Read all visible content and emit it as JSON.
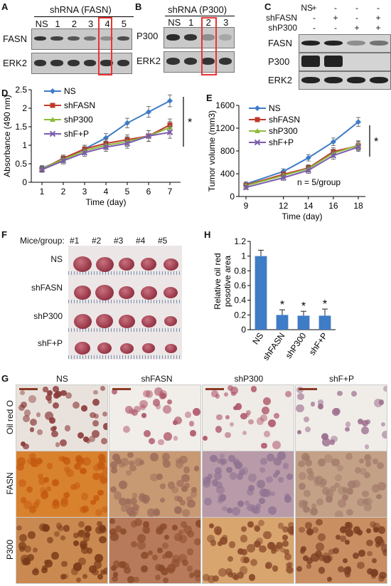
{
  "panels": {
    "A": {
      "label": "A",
      "title": "shRNA (FASN)",
      "lanes": [
        "NS",
        "1",
        "2",
        "3",
        "4",
        "5"
      ],
      "rows": [
        "FASN",
        "ERK2"
      ],
      "fasn_intensity": [
        0.9,
        0.8,
        0.7,
        0.55,
        0.35,
        0.75
      ]
    },
    "B": {
      "label": "B",
      "title": "shRNA (P300)",
      "lanes": [
        "NS",
        "1",
        "2",
        "3"
      ],
      "rows": [
        "P300",
        "ERK2"
      ],
      "p300_intensity": [
        0.95,
        0.9,
        0.35,
        0.2
      ]
    },
    "C": {
      "label": "C",
      "row_labels": [
        "NS",
        "shFASN",
        "shP300"
      ],
      "signs": [
        [
          "+",
          "-",
          "-",
          "-"
        ],
        [
          "-",
          "+",
          "-",
          "+"
        ],
        [
          "-",
          "-",
          "+",
          "+"
        ]
      ],
      "rows": [
        "FASN",
        "P300",
        "ERK2"
      ]
    },
    "D": {
      "label": "D"
    },
    "E": {
      "label": "E",
      "note": "n = 5/group"
    },
    "F": {
      "label": "F",
      "header": "Mice/group:",
      "cols": [
        "#1",
        "#2",
        "#3",
        "#4",
        "#5"
      ],
      "rows": [
        "NS",
        "shFASN",
        "shP300",
        "shF+P"
      ]
    },
    "G": {
      "label": "G",
      "cols": [
        "NS",
        "shFASN",
        "shP300",
        "shF+P"
      ],
      "rows": [
        "Oil red O",
        "FASN",
        "P300"
      ]
    },
    "H": {
      "label": "H"
    }
  },
  "chart_data": [
    {
      "id": "D",
      "type": "line",
      "xlabel": "Time (day)",
      "ylabel": "Absorbance (490 nm)",
      "x": [
        1,
        2,
        3,
        4,
        5,
        6,
        7
      ],
      "ylim": [
        0,
        2.5
      ],
      "yticks": [
        0,
        0.5,
        1,
        1.5,
        2,
        2.5
      ],
      "series": [
        {
          "name": "NS",
          "color": "#3f7cc6",
          "values": [
            0.38,
            0.62,
            0.9,
            1.2,
            1.6,
            1.9,
            2.2
          ]
        },
        {
          "name": "shFASN",
          "color": "#c0392b",
          "values": [
            0.35,
            0.65,
            0.9,
            1.05,
            1.15,
            1.25,
            1.55
          ]
        },
        {
          "name": "shP300",
          "color": "#8dbb3c",
          "values": [
            0.36,
            0.62,
            0.85,
            1.0,
            1.1,
            1.25,
            1.48
          ]
        },
        {
          "name": "shF+P",
          "color": "#7c5cae",
          "values": [
            0.34,
            0.58,
            0.8,
            0.95,
            1.05,
            1.25,
            1.35
          ]
        }
      ],
      "significance": "*",
      "legend": "top-left"
    },
    {
      "id": "E",
      "type": "line",
      "xlabel": "Time (day)",
      "ylabel": "Tumor volume (mm3)",
      "x": [
        9,
        12,
        14,
        16,
        18
      ],
      "ylim": [
        0,
        1600
      ],
      "yticks": [
        0,
        400,
        800,
        1200,
        1600
      ],
      "series": [
        {
          "name": "NS",
          "color": "#3f7cc6",
          "values": [
            220,
            440,
            680,
            960,
            1310
          ]
        },
        {
          "name": "shFASN",
          "color": "#c0392b",
          "values": [
            200,
            390,
            500,
            790,
            890
          ]
        },
        {
          "name": "shP300",
          "color": "#8dbb3c",
          "values": [
            190,
            370,
            490,
            760,
            900
          ]
        },
        {
          "name": "shF+P",
          "color": "#7c5cae",
          "values": [
            160,
            330,
            460,
            720,
            870
          ]
        }
      ],
      "significance": "*",
      "legend": "top-left"
    },
    {
      "id": "H",
      "type": "bar",
      "ylabel": "Relative oil red posotive area",
      "categories": [
        "NS",
        "shFASN",
        "shP300",
        "shF+P"
      ],
      "values": [
        1.0,
        0.2,
        0.19,
        0.19
      ],
      "errors": [
        0.08,
        0.07,
        0.06,
        0.09
      ],
      "ylim": [
        0,
        1.2
      ],
      "yticks": [
        0,
        0.2,
        0.4,
        0.6,
        0.8,
        1,
        1.2
      ],
      "color": "#3f7cc6",
      "annotations": [
        "",
        "*",
        "*",
        "*"
      ]
    }
  ]
}
